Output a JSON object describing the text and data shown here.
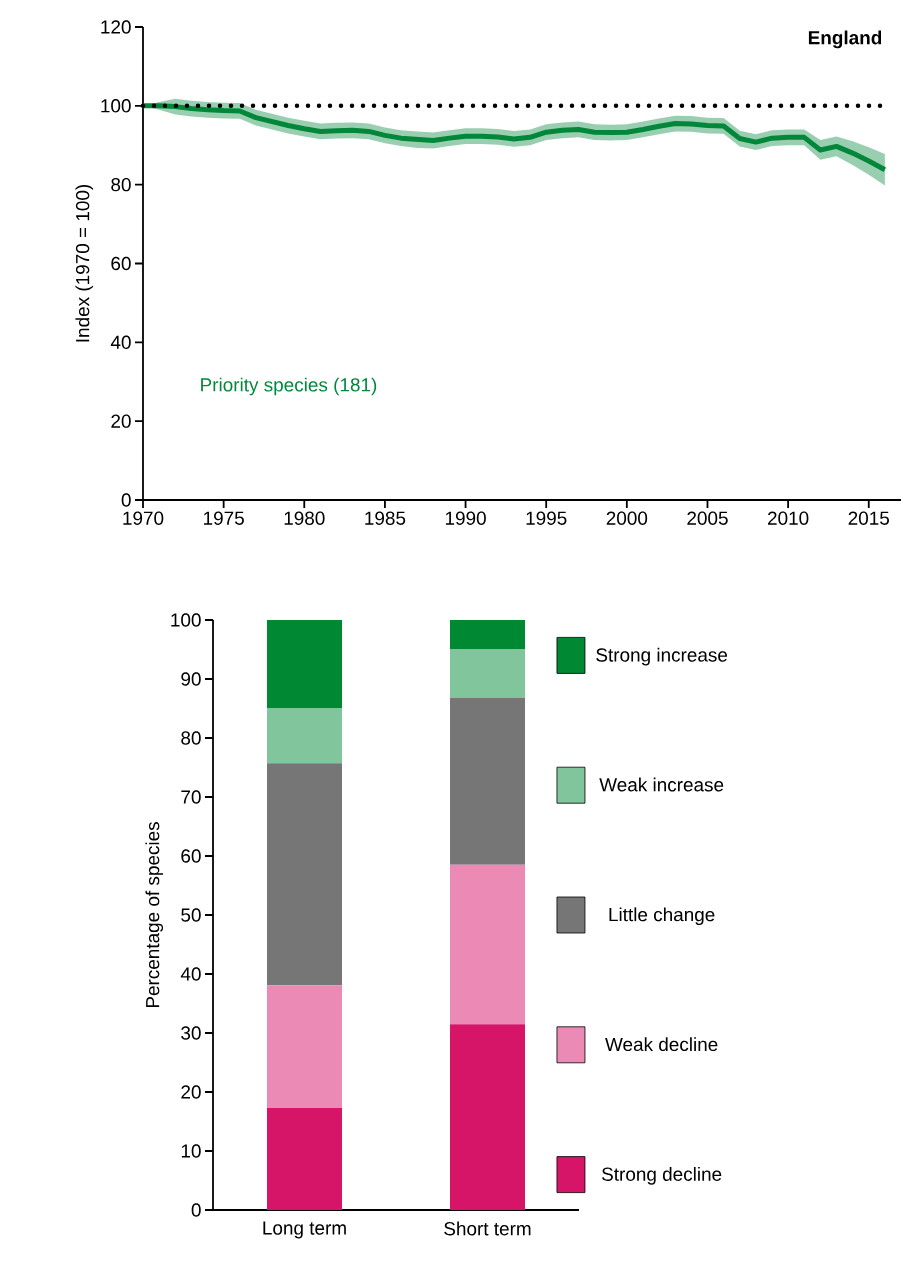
{
  "chart_data": [
    {
      "type": "line",
      "title": "England",
      "ylabel": "Index (1970 = 100)",
      "x": [
        1970,
        1971,
        1972,
        1973,
        1974,
        1975,
        1976,
        1977,
        1978,
        1979,
        1980,
        1981,
        1982,
        1983,
        1984,
        1985,
        1986,
        1987,
        1988,
        1989,
        1990,
        1991,
        1992,
        1993,
        1994,
        1995,
        1996,
        1997,
        1998,
        1999,
        2000,
        2001,
        2002,
        2003,
        2004,
        2005,
        2006,
        2007,
        2008,
        2009,
        2010,
        2011,
        2012,
        2013,
        2014,
        2015,
        2016
      ],
      "series": [
        {
          "name": "Priority species (181)",
          "color": "#00873a",
          "values": [
            100,
            100,
            99.8,
            99.3,
            99,
            98.8,
            98.7,
            97,
            96,
            95,
            94.2,
            93.5,
            93.7,
            93.8,
            93.5,
            92.5,
            91.8,
            91.5,
            91.2,
            91.8,
            92.3,
            92.3,
            92.1,
            91.6,
            92,
            93.3,
            93.8,
            94,
            93.3,
            93.2,
            93.3,
            94,
            94.8,
            95.5,
            95.4,
            95,
            94.9,
            91.7,
            90.8,
            91.8,
            92,
            92,
            88.8,
            89.7,
            88,
            86,
            83.8
          ],
          "upper": [
            100,
            101,
            101.8,
            101.3,
            101,
            100.8,
            100.7,
            99,
            98,
            97,
            96.2,
            95.5,
            95.7,
            95.8,
            95.5,
            94.5,
            93.8,
            93.5,
            93.2,
            93.8,
            94.3,
            94.3,
            94.1,
            93.6,
            94,
            95.3,
            95.8,
            96,
            95.3,
            95.2,
            95.3,
            96,
            96.8,
            97.5,
            97.4,
            97,
            96.9,
            93.7,
            92.8,
            93.8,
            94,
            94,
            91.3,
            92.2,
            91,
            89.5,
            87.8
          ],
          "lower": [
            100,
            99,
            97.8,
            97.3,
            97,
            96.8,
            96.7,
            95,
            94,
            93,
            92.2,
            91.5,
            91.7,
            91.8,
            91.5,
            90.5,
            89.8,
            89.3,
            89.2,
            89.8,
            90.3,
            90.3,
            90.1,
            89.6,
            90,
            91.3,
            91.8,
            92,
            91.3,
            91.2,
            91.3,
            92,
            92.8,
            93.5,
            93.4,
            93,
            92.9,
            89.7,
            88.8,
            89.8,
            90,
            90,
            86.3,
            87.2,
            85,
            82.5,
            79.8
          ]
        }
      ],
      "xlim": [
        1970,
        2017
      ],
      "ylim": [
        0,
        120
      ],
      "xticks": [
        1970,
        1975,
        1980,
        1985,
        1990,
        1995,
        2000,
        2005,
        2010,
        2015
      ],
      "yticks": [
        0,
        20,
        40,
        60,
        80,
        100,
        120
      ],
      "ref_lines": [
        {
          "axis": "y",
          "value": 100,
          "color": "#000000",
          "line_style": "dotted"
        }
      ]
    },
    {
      "type": "bar",
      "stacked": true,
      "ylabel": "Percentage of species",
      "categories": [
        "Long term",
        "Short term"
      ],
      "series": [
        {
          "name": "Strong decline",
          "color": "#d61468",
          "values": [
            17.3,
            31.5
          ]
        },
        {
          "name": "Weak decline",
          "color": "#eb8ab4",
          "values": [
            20.8,
            27
          ]
        },
        {
          "name": "Little change",
          "color": "#767676",
          "values": [
            37.6,
            28.3
          ]
        },
        {
          "name": "Weak increase",
          "color": "#80c59c",
          "values": [
            9.3,
            8.2
          ]
        },
        {
          "name": "Strong increase",
          "color": "#008833",
          "values": [
            15,
            5
          ]
        }
      ],
      "ylim": [
        0,
        100
      ],
      "yticks": [
        0,
        10,
        20,
        30,
        40,
        50,
        60,
        70,
        80,
        90,
        100
      ],
      "legend": "right"
    }
  ]
}
